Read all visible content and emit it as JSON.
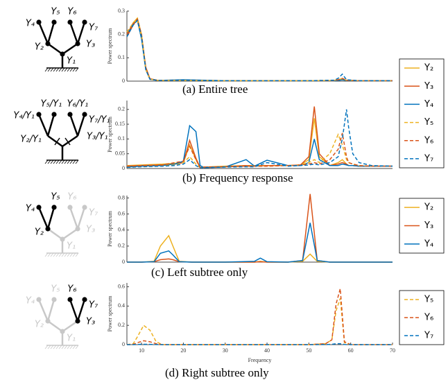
{
  "chart_data": [
    {
      "type": "line",
      "caption": "(a) Entire tree",
      "ylabel": "Power spectrum",
      "x": [
        6.5,
        8,
        9,
        10,
        11,
        12,
        14,
        20,
        30,
        40,
        50,
        56,
        57,
        58,
        59,
        62,
        70
      ],
      "xlim": [
        6.5,
        70
      ],
      "ylim": [
        0,
        0.3
      ],
      "yticks": [
        0,
        0.1,
        0.2,
        0.3
      ],
      "series": [
        {
          "color": "#EDB120",
          "dashed": false,
          "values": [
            0.2,
            0.25,
            0.27,
            0.2,
            0.06,
            0.01,
            0.003,
            0.003,
            0.002,
            0.002,
            0.002,
            0.002,
            0.004,
            0.006,
            0.003,
            0.002,
            0.002
          ]
        },
        {
          "color": "#D95319",
          "dashed": false,
          "values": [
            0.19,
            0.24,
            0.265,
            0.19,
            0.06,
            0.01,
            0.003,
            0.005,
            0.002,
            0.002,
            0.002,
            0.002,
            0.004,
            0.007,
            0.003,
            0.002,
            0.002
          ]
        },
        {
          "color": "#0072BD",
          "dashed": false,
          "values": [
            0.2,
            0.245,
            0.26,
            0.18,
            0.05,
            0.008,
            0.003,
            0.006,
            0.002,
            0.002,
            0.002,
            0.002,
            0.003,
            0.006,
            0.003,
            0.002,
            0.002
          ]
        },
        {
          "color": "#EDB120",
          "dashed": true,
          "values": [
            0.21,
            0.25,
            0.26,
            0.19,
            0.05,
            0.008,
            0.003,
            0.003,
            0.002,
            0.002,
            0.002,
            0.003,
            0.008,
            0.01,
            0.004,
            0.002,
            0.002
          ]
        },
        {
          "color": "#D95319",
          "dashed": true,
          "values": [
            0.2,
            0.245,
            0.265,
            0.2,
            0.055,
            0.009,
            0.003,
            0.003,
            0.002,
            0.002,
            0.002,
            0.003,
            0.006,
            0.012,
            0.004,
            0.002,
            0.002
          ]
        },
        {
          "color": "#0072BD",
          "dashed": true,
          "values": [
            0.19,
            0.24,
            0.26,
            0.19,
            0.05,
            0.008,
            0.003,
            0.003,
            0.002,
            0.002,
            0.002,
            0.004,
            0.012,
            0.03,
            0.006,
            0.002,
            0.002
          ]
        }
      ]
    },
    {
      "type": "line",
      "caption": "(b) Frequency response",
      "ylabel": "Power spectrum",
      "legend": "right",
      "x": [
        6.5,
        10,
        15,
        18,
        20,
        21.5,
        23,
        24,
        25,
        30,
        35,
        37,
        40,
        45,
        48,
        50,
        51.3,
        52.5,
        55,
        57,
        58,
        59,
        59.5,
        60.5,
        62,
        65,
        70
      ],
      "xlim": [
        6.5,
        70
      ],
      "ylim": [
        0,
        0.23
      ],
      "yticks": [
        0,
        0.05,
        0.1,
        0.15,
        0.2
      ],
      "series": [
        {
          "name": "Y₂",
          "color": "#EDB120",
          "dashed": false,
          "values": [
            0.01,
            0.012,
            0.015,
            0.018,
            0.02,
            0.08,
            0.03,
            0.003,
            0.005,
            0.008,
            0.01,
            0.01,
            0.01,
            0.01,
            0.012,
            0.03,
            0.17,
            0.04,
            0.01,
            0.02,
            0.03,
            0.015,
            0.01,
            0.01,
            0.008,
            0.008,
            0.008
          ]
        },
        {
          "name": "Y₃",
          "color": "#D95319",
          "dashed": false,
          "values": [
            0.008,
            0.01,
            0.012,
            0.015,
            0.02,
            0.095,
            0.035,
            0.003,
            0.005,
            0.006,
            0.01,
            0.008,
            0.01,
            0.01,
            0.012,
            0.04,
            0.21,
            0.05,
            0.01,
            0.015,
            0.02,
            0.015,
            0.01,
            0.01,
            0.008,
            0.008,
            0.008
          ]
        },
        {
          "name": "Y₄",
          "color": "#0072BD",
          "dashed": false,
          "values": [
            0.005,
            0.008,
            0.01,
            0.015,
            0.025,
            0.145,
            0.125,
            0.01,
            0.003,
            0.005,
            0.03,
            0.008,
            0.028,
            0.01,
            0.01,
            0.02,
            0.1,
            0.03,
            0.01,
            0.01,
            0.015,
            0.012,
            0.01,
            0.01,
            0.008,
            0.008,
            0.008
          ]
        },
        {
          "name": "Y₅",
          "color": "#EDB120",
          "dashed": true,
          "values": [
            0.006,
            0.008,
            0.01,
            0.012,
            0.02,
            0.04,
            0.015,
            0.003,
            0.005,
            0.006,
            0.008,
            0.008,
            0.008,
            0.01,
            0.012,
            0.02,
            0.03,
            0.02,
            0.05,
            0.115,
            0.08,
            0.03,
            0.02,
            0.015,
            0.01,
            0.008,
            0.008
          ]
        },
        {
          "name": "Y₆",
          "color": "#D95319",
          "dashed": true,
          "values": [
            0.008,
            0.01,
            0.012,
            0.02,
            0.025,
            0.075,
            0.03,
            0.003,
            0.005,
            0.006,
            0.008,
            0.008,
            0.008,
            0.01,
            0.012,
            0.015,
            0.02,
            0.015,
            0.03,
            0.065,
            0.12,
            0.04,
            0.02,
            0.015,
            0.01,
            0.008,
            0.008
          ]
        },
        {
          "name": "Y₇",
          "color": "#0072BD",
          "dashed": true,
          "values": [
            0.004,
            0.006,
            0.008,
            0.01,
            0.015,
            0.03,
            0.01,
            0.002,
            0.003,
            0.005,
            0.006,
            0.006,
            0.02,
            0.008,
            0.01,
            0.012,
            0.015,
            0.012,
            0.02,
            0.04,
            0.1,
            0.2,
            0.14,
            0.05,
            0.02,
            0.01,
            0.008
          ]
        }
      ]
    },
    {
      "type": "line",
      "caption": "(c) Left subtree only",
      "ylabel": "Power spectrum",
      "legend": "right",
      "x": [
        6.5,
        10,
        13,
        14.5,
        16.5,
        17.5,
        19,
        22,
        30,
        37,
        38.4,
        40,
        45,
        48.5,
        50.3,
        52,
        55,
        60,
        70
      ],
      "xlim": [
        6.5,
        70
      ],
      "ylim": [
        0,
        0.83
      ],
      "yticks": [
        0,
        0.2,
        0.4,
        0.6,
        0.8
      ],
      "series": [
        {
          "name": "Y₂",
          "color": "#EDB120",
          "dashed": false,
          "values": [
            0,
            0,
            0.01,
            0.2,
            0.33,
            0.2,
            0.01,
            0,
            0,
            0,
            0.01,
            0,
            0,
            0.01,
            0.1,
            0.01,
            0,
            0,
            0
          ]
        },
        {
          "name": "Y₃",
          "color": "#D95319",
          "dashed": false,
          "values": [
            0,
            0,
            0.005,
            0.03,
            0.04,
            0.03,
            0.005,
            0,
            0,
            0,
            0.005,
            0,
            0,
            0.02,
            0.85,
            0.02,
            0,
            0,
            0
          ]
        },
        {
          "name": "Y₄",
          "color": "#0072BD",
          "dashed": false,
          "values": [
            0,
            0,
            0.005,
            0.11,
            0.14,
            0.09,
            0.005,
            0,
            0,
            0.01,
            0.05,
            0.005,
            0,
            0.02,
            0.49,
            0.02,
            0,
            0,
            0
          ]
        }
      ]
    },
    {
      "type": "line",
      "caption": "(d) Right subtree only",
      "ylabel": "Power spectrum",
      "xlabel": "Frequency",
      "legend": "right",
      "x": [
        6.5,
        8,
        9,
        10.5,
        12,
        13.5,
        15,
        20,
        30,
        40,
        50,
        54,
        55.5,
        56.5,
        57.5,
        58.5,
        60,
        70
      ],
      "xlim": [
        6.5,
        70
      ],
      "xticks": [
        10,
        20,
        30,
        40,
        50,
        60,
        70
      ],
      "ylim": [
        0,
        0.64
      ],
      "yticks": [
        0,
        0.2,
        0.4,
        0.6
      ],
      "series": [
        {
          "name": "Y₅",
          "color": "#EDB120",
          "dashed": true,
          "values": [
            0,
            0.01,
            0.08,
            0.2,
            0.15,
            0.03,
            0,
            0,
            0,
            0,
            0,
            0.01,
            0.05,
            0.35,
            0.48,
            0.02,
            0,
            0
          ]
        },
        {
          "name": "Y₆",
          "color": "#D95319",
          "dashed": true,
          "values": [
            0,
            0.003,
            0.02,
            0.04,
            0.03,
            0.01,
            0,
            0,
            0,
            0,
            0,
            0.01,
            0.05,
            0.42,
            0.58,
            0.03,
            0,
            0
          ]
        },
        {
          "name": "Y₇",
          "color": "#0072BD",
          "dashed": true,
          "values": [
            0,
            0,
            0.002,
            0.004,
            0.003,
            0.001,
            0,
            0,
            0,
            0,
            0,
            0.001,
            0.003,
            0.01,
            0.01,
            0.002,
            0,
            0
          ]
        }
      ]
    }
  ],
  "trees": [
    {
      "labels": {
        "1": "Y₁",
        "2": "Y₂",
        "3": "Y₃",
        "4": "Y₄",
        "5": "Y₅",
        "6": "Y₆",
        "7": "Y₇"
      }
    },
    {
      "labels": {
        "2": "Y₂/Y₁",
        "3": "Y₃/Y₁",
        "4": "Y₄/Y₁",
        "5": "Y₅/Y₁",
        "6": "Y₆/Y₁",
        "7": "Y₇/Y₁"
      }
    },
    {
      "labels": {
        "1": "Y₁",
        "2": "Y₂",
        "3": "Y₃",
        "4": "Y₄",
        "5": "Y₅",
        "6": "Y₆",
        "7": "Y₇"
      }
    },
    {
      "labels": {
        "1": "Y₁",
        "2": "Y₂",
        "3": "Y₃",
        "4": "Y₄",
        "5": "Y₅",
        "6": "Y₆",
        "7": "Y₇"
      }
    }
  ]
}
